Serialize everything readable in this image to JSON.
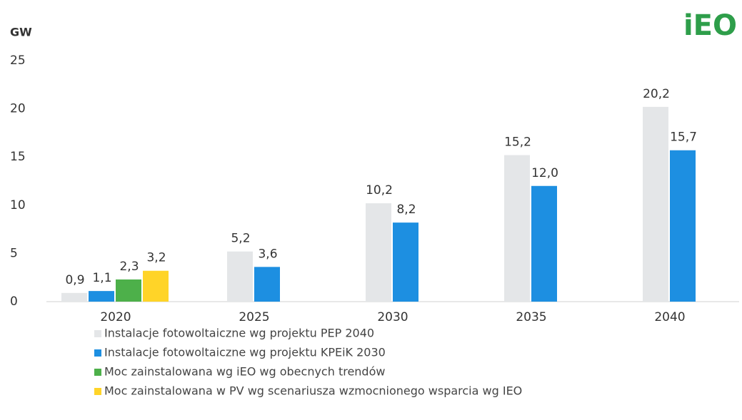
{
  "chart_data": {
    "type": "bar",
    "y_axis_label": "GW",
    "logo": "iEO",
    "categories": [
      "2020",
      "2025",
      "2030",
      "2035",
      "2040"
    ],
    "series": [
      {
        "name": "Instalacje fotowoltaiczne wg projektu PEP 2040",
        "color": "#e4e6e8",
        "values": [
          0.9,
          5.2,
          10.2,
          15.2,
          20.2
        ],
        "value_labels": [
          "0,9",
          "5,2",
          "10,2",
          "15,2",
          "20,2"
        ]
      },
      {
        "name": "Instalacje fotowoltaiczne wg projektu KPEiK 2030",
        "color": "#1d8fe1",
        "values": [
          1.1,
          3.6,
          8.2,
          12.0,
          15.7
        ],
        "value_labels": [
          "1,1",
          "3,6",
          "8,2",
          "12,0",
          "15,7"
        ]
      },
      {
        "name": "Moc zainstalowana wg iEO wg obecnych trendów",
        "color": "#4db04a",
        "values": [
          2.3,
          null,
          null,
          null,
          null
        ],
        "value_labels": [
          "2,3",
          null,
          null,
          null,
          null
        ]
      },
      {
        "name": "Moc zainstalowana w PV wg scenariusza wzmocnionego wsparcia wg IEO",
        "color": "#ffd428",
        "values": [
          3.2,
          null,
          null,
          null,
          null
        ],
        "value_labels": [
          "3,2",
          null,
          null,
          null,
          null
        ]
      }
    ],
    "ylim": [
      0,
      25
    ],
    "yticks": [
      0,
      5,
      10,
      15,
      20,
      25
    ],
    "grid": false
  }
}
